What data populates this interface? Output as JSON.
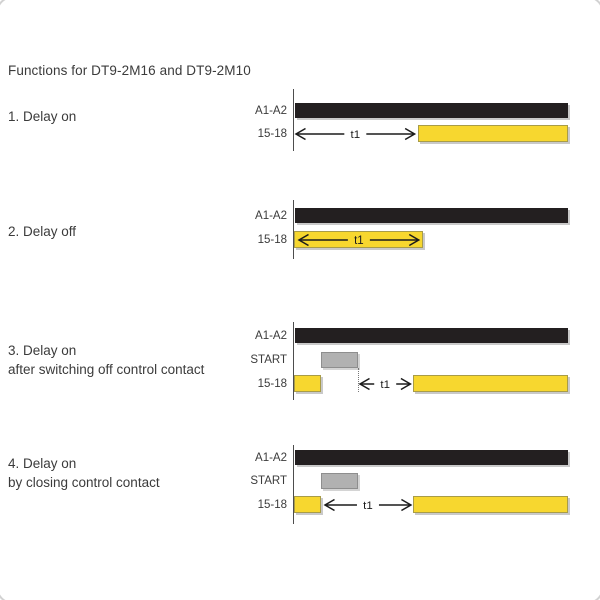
{
  "page": {
    "title": "Functions for DT9-2M16 and DT9-2M10"
  },
  "colors": {
    "bar_black": "#231f20",
    "bar_yellow": "#f7d72f",
    "bar_yellow_border": "#a89c48",
    "bar_gray": "#b1b1b1",
    "bar_gray_border": "#8e8e8e",
    "shadow": "#c9c9c9",
    "text": "#3b3b3b",
    "arrow": "#1b1b1b"
  },
  "diagram": {
    "time_label": "t1",
    "sections": [
      {
        "title": "1. Delay on",
        "subtitle": "",
        "rows": [
          {
            "label": "A1-A2",
            "segments": [
              {
                "type": "bar",
                "color": "black",
                "start": 0.6,
                "end": 100
              }
            ]
          },
          {
            "label": "15-18",
            "segments": [
              {
                "type": "arrow",
                "start": 0.4,
                "end": 45.0,
                "label": "t1"
              },
              {
                "type": "bar",
                "color": "yellow",
                "start": 45.5,
                "end": 100
              }
            ]
          }
        ],
        "markers": []
      },
      {
        "title": "2. Delay off",
        "subtitle": "",
        "rows": [
          {
            "label": "A1-A2",
            "segments": [
              {
                "type": "bar",
                "color": "black",
                "start": 0.6,
                "end": 100
              }
            ]
          },
          {
            "label": "15-18",
            "segments": [
              {
                "type": "bar",
                "color": "yellow",
                "start": 0.4,
                "end": 47.3
              },
              {
                "type": "arrow",
                "start": 1.4,
                "end": 46.4,
                "label": "t1"
              }
            ]
          }
        ],
        "markers": []
      },
      {
        "title": "3. Delay on",
        "subtitle": "after switching off control contact",
        "rows": [
          {
            "label": "A1-A2",
            "segments": [
              {
                "type": "bar",
                "color": "black",
                "start": 0.6,
                "end": 100
              }
            ]
          },
          {
            "label": "START",
            "segments": [
              {
                "type": "bar",
                "color": "gray",
                "start": 10.2,
                "end": 23.6
              }
            ]
          },
          {
            "label": "15-18",
            "segments": [
              {
                "type": "bar",
                "color": "yellow",
                "start": 0.4,
                "end": 10.2
              },
              {
                "type": "arrow",
                "start": 23.8,
                "end": 43.6,
                "label": "t1"
              },
              {
                "type": "bar",
                "color": "yellow",
                "start": 43.6,
                "end": 100
              }
            ]
          }
        ],
        "markers": [
          {
            "type": "dotted-vline",
            "t": 23.6,
            "from_row": 1,
            "to_row": 2
          }
        ]
      },
      {
        "title": "4. Delay on",
        "subtitle": "by closing control contact",
        "rows": [
          {
            "label": "A1-A2",
            "segments": [
              {
                "type": "bar",
                "color": "black",
                "start": 0.6,
                "end": 100
              }
            ]
          },
          {
            "label": "START",
            "segments": [
              {
                "type": "bar",
                "color": "gray",
                "start": 10.2,
                "end": 23.6
              }
            ]
          },
          {
            "label": "15-18",
            "segments": [
              {
                "type": "bar",
                "color": "yellow",
                "start": 0.4,
                "end": 10.2
              },
              {
                "type": "arrow",
                "start": 10.9,
                "end": 43.6,
                "label": "t1"
              },
              {
                "type": "bar",
                "color": "yellow",
                "start": 43.6,
                "end": 100
              }
            ]
          }
        ],
        "markers": []
      }
    ]
  }
}
